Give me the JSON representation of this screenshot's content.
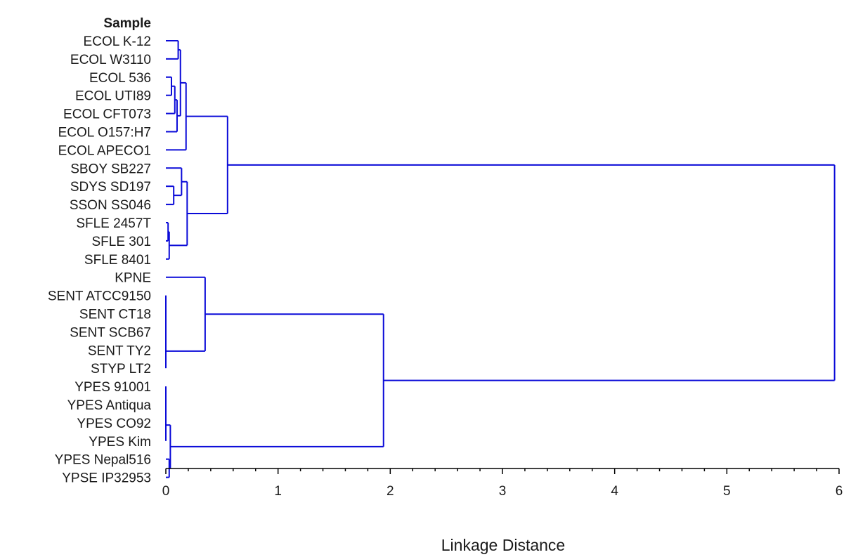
{
  "chart_data": {
    "type": "dendrogram",
    "orientation": "horizontal",
    "header_label": "Sample",
    "leaves": [
      "ECOL K-12",
      "ECOL W3110",
      "ECOL 536",
      "ECOL UTI89",
      "ECOL CFT073",
      "ECOL O157:H7",
      "ECOL APECO1",
      "SBOY SB227",
      "SDYS SD197",
      "SSON SS046",
      "SFLE 2457T",
      "SFLE 301",
      "SFLE 8401",
      "KPNE",
      "SENT ATCC9150",
      "SENT CT18",
      "SENT SCB67",
      "SENT TY2",
      "STYP LT2",
      "YPES 91001",
      "YPES Antiqua",
      "YPES CO92",
      "YPES Kim",
      "YPES Nepal516",
      "YPSE IP32953"
    ],
    "merges": [
      {
        "id": "m1",
        "children": [
          "SFLE 2457T",
          "SFLE 301"
        ],
        "height": 0.02
      },
      {
        "id": "m2",
        "children": [
          "m1",
          "SFLE 8401"
        ],
        "height": 0.03
      },
      {
        "id": "m3",
        "children": [
          "SENT ATCC9150",
          "SENT CT18"
        ],
        "height": 0.0
      },
      {
        "id": "m4",
        "children": [
          "m3",
          "SENT SCB67"
        ],
        "height": 0.0
      },
      {
        "id": "m5",
        "children": [
          "m4",
          "SENT TY2"
        ],
        "height": 0.0
      },
      {
        "id": "m6",
        "children": [
          "m5",
          "STYP LT2"
        ],
        "height": 0.0
      },
      {
        "id": "m7",
        "children": [
          "YPES 91001",
          "YPES Antiqua"
        ],
        "height": 0.0
      },
      {
        "id": "m8",
        "children": [
          "m7",
          "YPES CO92"
        ],
        "height": 0.0
      },
      {
        "id": "m9",
        "children": [
          "m8",
          "YPES Kim"
        ],
        "height": 0.0
      },
      {
        "id": "m10",
        "children": [
          "YPES Nepal516",
          "YPSE IP32953"
        ],
        "height": 0.03
      },
      {
        "id": "m11",
        "children": [
          "m9",
          "m10"
        ],
        "height": 0.04
      },
      {
        "id": "m12",
        "children": [
          "ECOL 536",
          "ECOL UTI89"
        ],
        "height": 0.05
      },
      {
        "id": "m13",
        "children": [
          "m12",
          "ECOL CFT073"
        ],
        "height": 0.08
      },
      {
        "id": "m14",
        "children": [
          "m13",
          "ECOL O157:H7"
        ],
        "height": 0.1
      },
      {
        "id": "m15",
        "children": [
          "ECOL K-12",
          "ECOL W3110"
        ],
        "height": 0.11
      },
      {
        "id": "m16",
        "children": [
          "m15",
          "m14"
        ],
        "height": 0.13
      },
      {
        "id": "m17",
        "children": [
          "m16",
          "ECOL APECO1"
        ],
        "height": 0.18
      },
      {
        "id": "m18",
        "children": [
          "SDYS SD197",
          "SSON SS046"
        ],
        "height": 0.07
      },
      {
        "id": "m19",
        "children": [
          "SBOY SB227",
          "m18"
        ],
        "height": 0.14
      },
      {
        "id": "m20",
        "children": [
          "m19",
          "m2"
        ],
        "height": 0.19
      },
      {
        "id": "m21",
        "children": [
          "m17",
          "m20"
        ],
        "height": 0.55
      },
      {
        "id": "m22",
        "children": [
          "KPNE",
          "m6"
        ],
        "height": 0.35
      },
      {
        "id": "m23",
        "children": [
          "m22",
          "m11"
        ],
        "height": 1.94
      },
      {
        "id": "m24",
        "children": [
          "m21",
          "m23"
        ],
        "height": 5.96
      }
    ],
    "xlabel": "Linkage Distance",
    "xlim": [
      0,
      6
    ],
    "x_ticks": [
      "0",
      "1",
      "2",
      "3",
      "4",
      "5",
      "6"
    ],
    "minor_ticks_per_unit": 5,
    "grid": false,
    "legend": "none",
    "colors": {
      "branch": "#0a0ad8",
      "axis": "#000000",
      "text": "#1a1a1a"
    }
  }
}
